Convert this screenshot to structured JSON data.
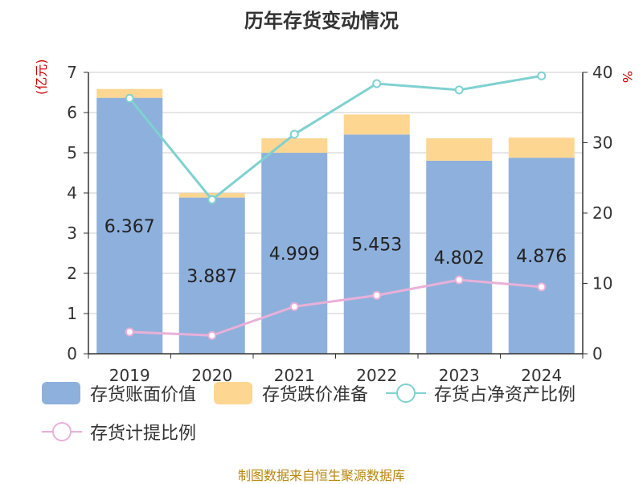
{
  "title": "历年存货变动情况",
  "unit_left": "(亿元)",
  "unit_right": "%",
  "source": "制图数据来自恒生聚源数据库",
  "colors": {
    "book_value": "#8eb0dc",
    "impairment": "#fdd692",
    "net_assets_ratio": "#7fd1d1",
    "provision_ratio": "#e9b0d8",
    "axis": "#333333",
    "grid": "#cccccc"
  },
  "chart_data": {
    "type": "bar",
    "categories": [
      "2019",
      "2020",
      "2021",
      "2022",
      "2023",
      "2024"
    ],
    "series": [
      {
        "name": "存货账面价值",
        "type": "bar",
        "axis": "left",
        "values": [
          6.367,
          3.887,
          4.999,
          5.453,
          4.802,
          4.876
        ],
        "labels": [
          "6.367",
          "3.887",
          "4.999",
          "5.453",
          "4.802",
          "4.876"
        ]
      },
      {
        "name": "存货跌价准备",
        "type": "bar",
        "axis": "left",
        "values": [
          0.22,
          0.11,
          0.36,
          0.5,
          0.56,
          0.5
        ]
      },
      {
        "name": "存货占净资产比例",
        "type": "line",
        "axis": "right",
        "values": [
          36.3,
          21.9,
          31.2,
          38.4,
          37.5,
          39.5
        ]
      },
      {
        "name": "存货计提比例",
        "type": "line",
        "axis": "right",
        "values": [
          3.1,
          2.6,
          6.7,
          8.3,
          10.5,
          9.5
        ]
      }
    ],
    "left_axis": {
      "min": 0,
      "max": 7,
      "ticks": [
        "0",
        "1",
        "2",
        "3",
        "4",
        "5",
        "6",
        "7"
      ]
    },
    "right_axis": {
      "min": 0,
      "max": 40,
      "ticks": [
        "0",
        "10",
        "20",
        "30",
        "40"
      ]
    },
    "grid": true,
    "legend_position": "bottom"
  }
}
